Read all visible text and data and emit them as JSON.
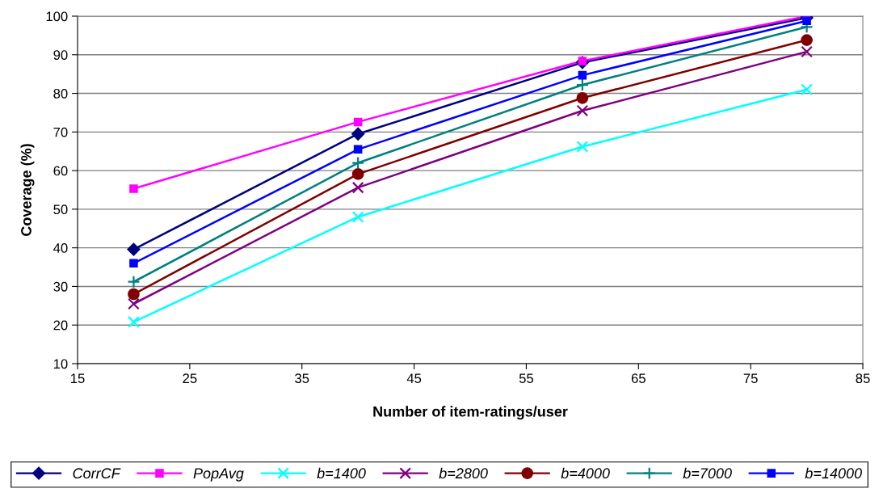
{
  "chart_data": {
    "type": "line",
    "xlabel": "Number of item-ratings/user",
    "ylabel": "Coverage (%)",
    "x": [
      20,
      40,
      60,
      80
    ],
    "xlim": [
      15,
      85
    ],
    "xticks": [
      15,
      25,
      35,
      45,
      55,
      65,
      75,
      85
    ],
    "ylim": [
      10,
      100
    ],
    "yticks": [
      10,
      20,
      30,
      40,
      50,
      60,
      70,
      80,
      90,
      100
    ],
    "grid": "y",
    "legend": "bottom",
    "series": [
      {
        "name": "CorrCF",
        "color": "#000080",
        "marker": "diamond",
        "values": [
          39.6,
          69.5,
          88.0,
          99.6
        ]
      },
      {
        "name": "PopAvg",
        "color": "#ff00ff",
        "marker": "square",
        "values": [
          55.3,
          72.6,
          88.4,
          100
        ]
      },
      {
        "name": "b=1400",
        "color": "#00ffff",
        "marker": "cross",
        "values": [
          20.8,
          48.0,
          66.2,
          81.0
        ]
      },
      {
        "name": "b=2800",
        "color": "#800080",
        "marker": "cross",
        "values": [
          25.5,
          55.6,
          75.5,
          90.8
        ]
      },
      {
        "name": "b=4000",
        "color": "#800000",
        "marker": "circle",
        "values": [
          28.0,
          59.1,
          78.8,
          93.8
        ]
      },
      {
        "name": "b=7000",
        "color": "#008080",
        "marker": "plus",
        "values": [
          31.2,
          62.0,
          82.2,
          97.2
        ]
      },
      {
        "name": "b=14000",
        "color": "#0000ff",
        "marker": "square",
        "values": [
          36.0,
          65.5,
          84.7,
          98.8
        ]
      }
    ]
  }
}
